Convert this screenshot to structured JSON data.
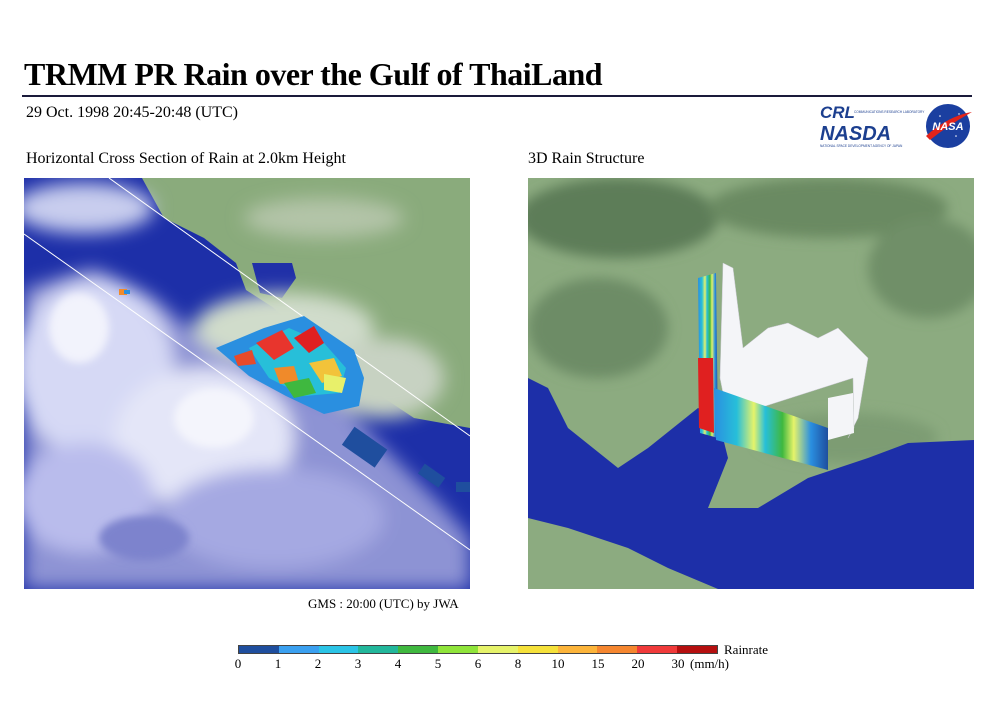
{
  "header": {
    "title": "TRMM PR Rain over the Gulf of ThaiLand",
    "date": "29 Oct. 1998 20:45-20:48 (UTC)"
  },
  "logos": {
    "crl": "CRL",
    "crl_caption": "COMMUNICATIONS RESEARCH LABORATORY",
    "nasda": "NASDA",
    "nasda_caption": "NATIONAL SPACE DEVELOPMENT AGENCY OF JAPAN",
    "nasa": "NASA"
  },
  "panels": {
    "left_title": "Horizontal Cross Section of Rain at  2.0km Height",
    "right_title": "3D Rain Structure"
  },
  "credit": "GMS : 20:00 (UTC) by JWA",
  "colorbar": {
    "label": "Rainrate",
    "unit": "(mm/h)",
    "ticks": [
      "0",
      "1",
      "2",
      "3",
      "4",
      "5",
      "6",
      "8",
      "10",
      "15",
      "20",
      "30"
    ],
    "colors": [
      "#1f4e9e",
      "#3aa0f0",
      "#2bc4e6",
      "#22b79b",
      "#3fb83f",
      "#8fe43a",
      "#e6f36a",
      "#f5e13a",
      "#fcb43a",
      "#f5862f",
      "#f03a3a",
      "#b50f0f"
    ]
  }
}
